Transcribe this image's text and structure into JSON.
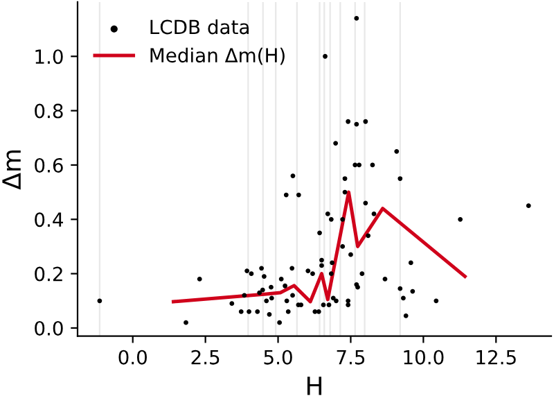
{
  "chart_data": {
    "type": "scatter",
    "xlabel": "H",
    "ylabel": "Δm",
    "xlim": [
      -1.9,
      14.4
    ],
    "ylim": [
      -0.03,
      1.2
    ],
    "xticks": [
      {
        "value": 0,
        "label": "0.0"
      },
      {
        "value": 2.5,
        "label": "2.5"
      },
      {
        "value": 5,
        "label": "5.0"
      },
      {
        "value": 7.5,
        "label": "7.5"
      },
      {
        "value": 10,
        "label": "10.0"
      },
      {
        "value": 12.5,
        "label": "12.5"
      }
    ],
    "yticks": [
      {
        "value": 0,
        "label": "0.0"
      },
      {
        "value": 0.2,
        "label": "0.2"
      },
      {
        "value": 0.4,
        "label": "0.4"
      },
      {
        "value": 0.6,
        "label": "0.6"
      },
      {
        "value": 0.8,
        "label": "0.8"
      },
      {
        "value": 1.0,
        "label": "1.0"
      }
    ],
    "grid": false,
    "legend": "top left",
    "ref_lines": [
      {
        "axis": "x",
        "value": -1.14,
        "color": "#e8e8e8"
      },
      {
        "axis": "x",
        "value": 3.97,
        "color": "#e8e8e8"
      },
      {
        "axis": "x",
        "value": 4.48,
        "color": "#e8e8e8"
      },
      {
        "axis": "x",
        "value": 4.92,
        "color": "#e8e8e8"
      },
      {
        "axis": "x",
        "value": 5.65,
        "color": "#e8e8e8"
      },
      {
        "axis": "x",
        "value": 6.43,
        "color": "#e8e8e8"
      },
      {
        "axis": "x",
        "value": 6.59,
        "color": "#e8e8e8"
      },
      {
        "axis": "x",
        "value": 6.79,
        "color": "#e8e8e8"
      },
      {
        "axis": "x",
        "value": 7.14,
        "color": "#e8e8e8"
      },
      {
        "axis": "x",
        "value": 7.65,
        "color": "#e8e8e8"
      },
      {
        "axis": "x",
        "value": 7.98,
        "color": "#e8e8e8"
      },
      {
        "axis": "x",
        "value": 9.2,
        "color": "#e8e8e8"
      }
    ],
    "series": [
      {
        "name": "LCDB data",
        "color": "#000000",
        "marker": "circle",
        "x": [
          -1.14,
          1.83,
          2.3,
          3.41,
          3.73,
          3.84,
          3.93,
          4.08,
          4.0,
          4.29,
          4.43,
          4.52,
          4.36,
          4.47,
          4.6,
          4.7,
          4.76,
          4.78,
          5.05,
          5.11,
          5.24,
          5.3,
          5.35,
          5.5,
          5.48,
          5.51,
          5.28,
          5.71,
          5.7,
          6.03,
          6.19,
          5.79,
          6.27,
          6.4,
          6.43,
          6.5,
          6.5,
          6.62,
          6.71,
          6.83,
          6.86,
          6.83,
          6.56,
          6.75,
          6.9,
          6.98,
          7.0,
          7.22,
          7.22,
          7.3,
          7.3,
          7.41,
          7.41,
          7.41,
          7.5,
          7.7,
          7.7,
          7.65,
          7.79,
          7.7,
          7.74,
          7.89,
          8.01,
          8.01,
          8.1,
          8.25,
          8.3,
          8.68,
          9.08,
          9.2,
          9.2,
          9.31,
          9.4,
          9.57,
          9.63,
          10.44,
          11.27,
          13.62
        ],
        "values": [
          0.1,
          0.02,
          0.18,
          0.09,
          0.06,
          0.12,
          0.21,
          0.2,
          0.06,
          0.06,
          0.22,
          0.19,
          0.13,
          0.14,
          0.1,
          0.05,
          0.15,
          0.11,
          0.02,
          0.18,
          0.155,
          0.1,
          0.06,
          0.12,
          0.22,
          0.56,
          0.49,
          0.49,
          0.085,
          0.21,
          0.2,
          0.085,
          0.06,
          0.06,
          0.35,
          0.25,
          0.23,
          1.0,
          0.42,
          0.4,
          0.24,
          0.2,
          0.085,
          0.085,
          0.11,
          0.68,
          0.1,
          0.4,
          0.3,
          0.55,
          0.5,
          0.76,
          0.1,
          0.085,
          0.27,
          1.14,
          0.75,
          0.6,
          0.6,
          0.16,
          0.15,
          0.2,
          0.76,
          0.46,
          0.34,
          0.6,
          0.42,
          0.18,
          0.65,
          0.55,
          0.145,
          0.11,
          0.045,
          0.24,
          0.135,
          0.1,
          0.4,
          0.45
        ]
      },
      {
        "name": "Median Δm(H)",
        "type": "line",
        "color": "#d0021b",
        "marker": "none",
        "line_style": "solid",
        "x": [
          1.4,
          4.6,
          5.08,
          5.55,
          6.11,
          6.5,
          6.71,
          7.43,
          7.74,
          8.6,
          11.43
        ],
        "values": [
          0.097,
          0.125,
          0.13,
          0.156,
          0.097,
          0.2,
          0.105,
          0.5,
          0.3,
          0.44,
          0.19
        ]
      }
    ]
  }
}
